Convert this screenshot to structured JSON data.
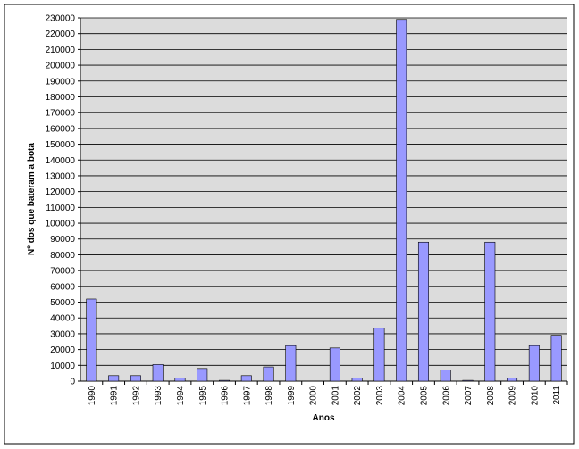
{
  "chart_data": {
    "type": "bar",
    "y_label": "Nº dos que bateram a bota",
    "x_label": "Anos",
    "categories": [
      "1990",
      "1991",
      "1992",
      "1993",
      "1994",
      "1995",
      "1996",
      "1997",
      "1998",
      "1999",
      "2000",
      "2001",
      "2002",
      "2003",
      "2004",
      "2005",
      "2006",
      "2007",
      "2008",
      "2009",
      "2010",
      "2011"
    ],
    "values": [
      52000,
      3500,
      3500,
      10500,
      2000,
      8000,
      500,
      3500,
      9000,
      22500,
      0,
      21000,
      2000,
      33500,
      229000,
      88000,
      7000,
      500,
      88000,
      2000,
      22500,
      29000
    ],
    "color": "#9999ff",
    "ylim": [
      0,
      230000
    ],
    "yticks": [
      0,
      10000,
      20000,
      30000,
      40000,
      50000,
      60000,
      70000,
      80000,
      90000,
      100000,
      110000,
      120000,
      130000,
      140000,
      150000,
      160000,
      170000,
      180000,
      190000,
      200000,
      210000,
      220000,
      230000
    ],
    "grid": true
  }
}
